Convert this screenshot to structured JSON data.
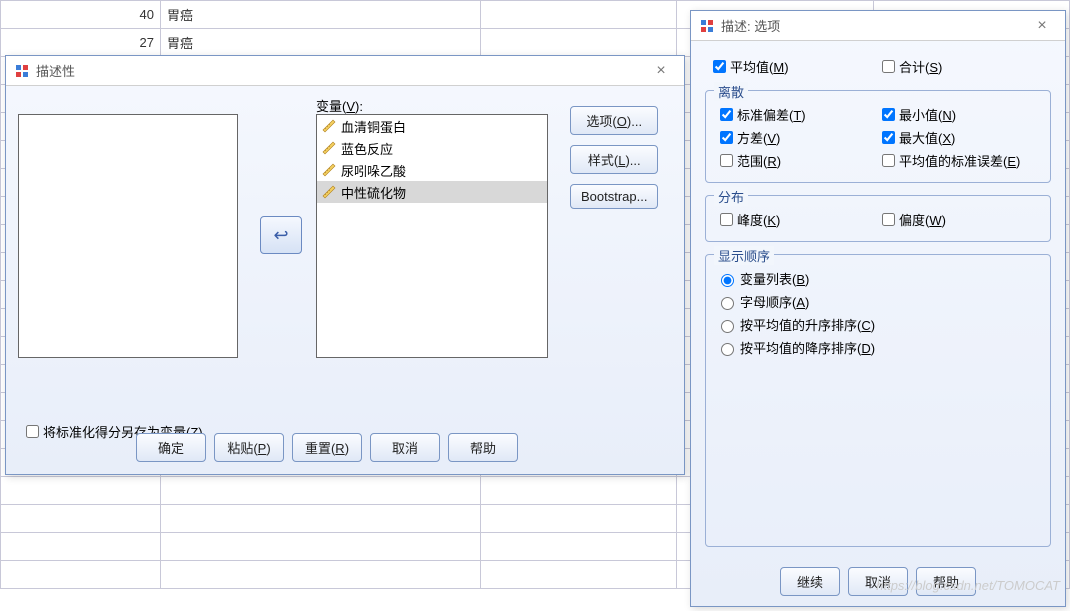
{
  "spreadsheet": {
    "rows": [
      {
        "num": "40",
        "val": "胃癌"
      },
      {
        "num": "27",
        "val": "胃癌"
      }
    ]
  },
  "dialog1": {
    "title": "描述性",
    "var_label": "变量(V):",
    "items": [
      "血清铜蛋白",
      "蓝色反应",
      "尿吲哚乙酸",
      "中性硫化物"
    ],
    "selected_index": 3,
    "right_buttons": {
      "options": "选项(O)...",
      "style": "样式(L)...",
      "bootstrap": "Bootstrap..."
    },
    "save_z": "将标准化得分另存为变量(Z)",
    "save_z_checked": false,
    "bottom": {
      "ok": "确定",
      "paste": "粘贴(P)",
      "reset": "重置(R)",
      "cancel": "取消",
      "help": "帮助"
    }
  },
  "dialog2": {
    "title": "描述: 选项",
    "mean": {
      "label": "平均值(M)",
      "checked": true
    },
    "sum": {
      "label": "合计(S)",
      "checked": false
    },
    "dispersion": {
      "legend": "离散",
      "std": {
        "label": "标准偏差(T)",
        "checked": true
      },
      "min": {
        "label": "最小值(N)",
        "checked": true
      },
      "var": {
        "label": "方差(V)",
        "checked": true
      },
      "max": {
        "label": "最大值(X)",
        "checked": true
      },
      "range": {
        "label": "范围(R)",
        "checked": false
      },
      "semean": {
        "label": "平均值的标准误差(E)",
        "checked": false
      }
    },
    "distribution": {
      "legend": "分布",
      "kurt": {
        "label": "峰度(K)",
        "checked": false
      },
      "skew": {
        "label": "偏度(W)",
        "checked": false
      }
    },
    "order": {
      "legend": "显示顺序",
      "opts": [
        {
          "label": "变量列表(B)",
          "checked": true
        },
        {
          "label": "字母顺序(A)",
          "checked": false
        },
        {
          "label": "按平均值的升序排序(C)",
          "checked": false
        },
        {
          "label": "按平均值的降序排序(D)",
          "checked": false
        }
      ]
    },
    "bottom": {
      "cont": "继续",
      "cancel": "取消",
      "help": "帮助"
    }
  },
  "watermark": "https://blog.csdn.net/TOMOCAT"
}
